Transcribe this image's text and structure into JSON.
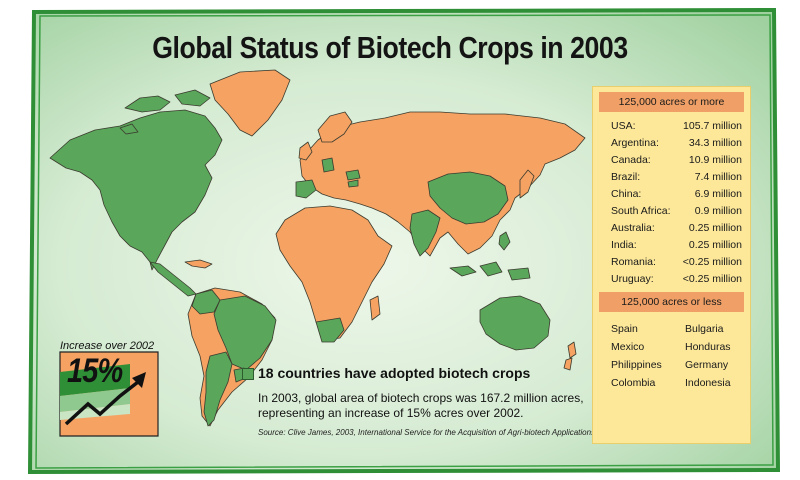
{
  "title": "Global Status of Biotech Crops in 2003",
  "colors": {
    "adopted": "#5aa65b",
    "not_adopted": "#f5a263",
    "background": "#cfe8cf",
    "frame": "#2f8f37",
    "panel": "#fde89a",
    "panel_header": "#f0a066"
  },
  "legend": {
    "label": "18 countries have adopted biotech crops"
  },
  "summary": {
    "line1": "In 2003, global area of biotech crops was 167.2 million acres,",
    "line2": "representing an increase of 15% acres over 2002."
  },
  "source": "Source: Clive James, 2003, International Service for the Acquisition of Agri-biotech Applications",
  "increase": {
    "label": "Increase over 2002",
    "value": "15%"
  },
  "panel": {
    "header_more": "125,000 acres or more",
    "more": [
      {
        "country": "USA:",
        "value": "105.7 million"
      },
      {
        "country": "Argentina:",
        "value": "34.3 million"
      },
      {
        "country": "Canada:",
        "value": "10.9  million"
      },
      {
        "country": "Brazil:",
        "value": "7.4 million"
      },
      {
        "country": "China:",
        "value": "6.9 million"
      },
      {
        "country": "South Africa:",
        "value": "0.9 million"
      },
      {
        "country": "Australia:",
        "value": "0.25 million"
      },
      {
        "country": "India:",
        "value": "0.25 million"
      },
      {
        "country": "Romania:",
        "value": "<0.25 million"
      },
      {
        "country": "Uruguay:",
        "value": "<0.25 million"
      }
    ],
    "header_less": "125,000 acres or less",
    "less_col1": [
      "Spain",
      "Mexico",
      "Philippines",
      "Colombia"
    ],
    "less_col2": [
      "Bulgaria",
      "Honduras",
      "Germany",
      "Indonesia"
    ]
  }
}
